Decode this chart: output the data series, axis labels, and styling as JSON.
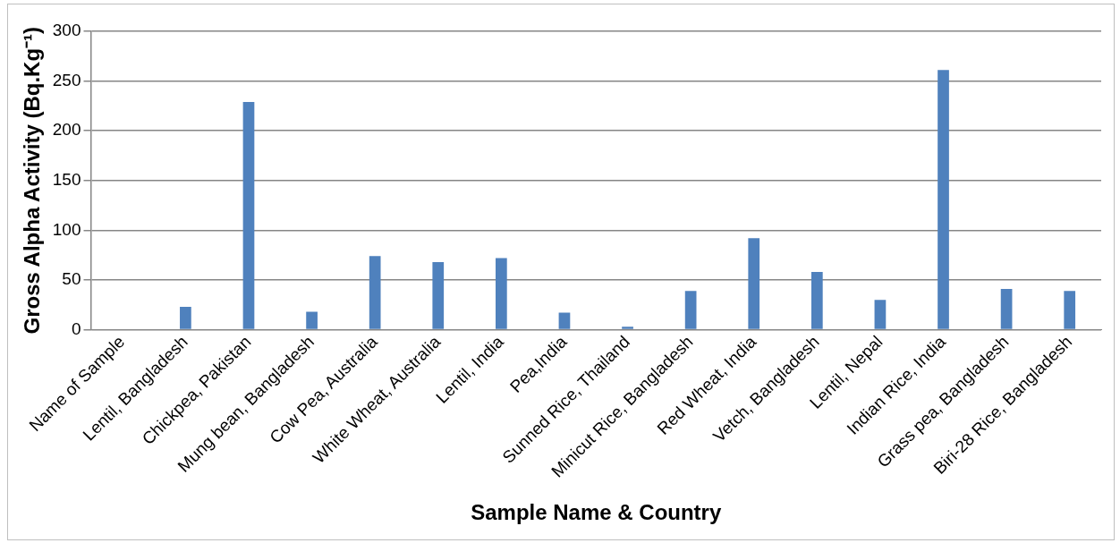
{
  "chart_data": {
    "type": "bar",
    "xlabel": "Sample Name & Country",
    "ylabel": "Gross Alpha Activity (Bq.Kg⁻¹)",
    "categories": [
      "Name of Sample",
      "Lentil, Bangladesh",
      "Chickpea, Pakistan",
      "Mung bean, Bangladesh",
      "Cow Pea, Australia",
      "White Wheat, Australia",
      "Lentil, India",
      "Pea,India",
      "Sunned Rice, Thailand",
      "Minicut Rice, Bangladesh",
      "Red Wheat, India",
      "Vetch, Bangladesh",
      "Lentil, Nepal",
      "Indian Rice, India",
      "Grass pea, Bangladesh",
      "Biri-28 Rice, Bangladesh"
    ],
    "values": [
      0,
      23,
      229,
      18,
      74,
      68,
      72,
      17,
      3,
      39,
      92,
      58,
      30,
      261,
      41,
      39
    ],
    "color": "#4f81bd",
    "ylim": [
      0,
      300
    ],
    "yticks": [
      0,
      50,
      100,
      150,
      200,
      250,
      300
    ],
    "grid": "y",
    "legend": false
  }
}
